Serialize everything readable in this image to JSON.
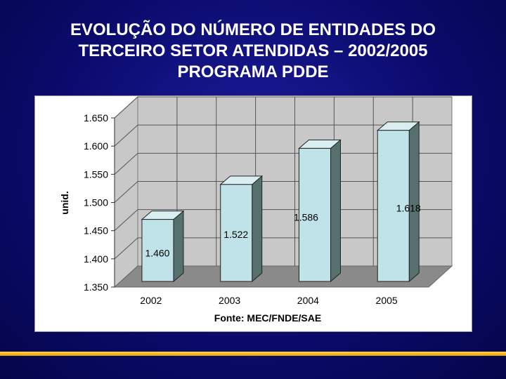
{
  "title": {
    "line1": "EVOLUÇÃO DO NÚMERO DE ENTIDADES DO",
    "line2": "TERCEIRO SETOR ATENDIDAS – 2002/2005",
    "line3": "PROGRAMA PDDE"
  },
  "colors": {
    "background": "#0b0b6e",
    "bar_front": "#bfe3e8",
    "bar_side": "#55706f",
    "bar_top": "#d9eef0",
    "wall": "#c8c8c8",
    "floor": "#8a8a8a",
    "accent_line": "#f2b400"
  },
  "chart_data": {
    "type": "bar",
    "style": "3d-column",
    "categories": [
      "2002",
      "2003",
      "2004",
      "2005"
    ],
    "values": [
      1460,
      1522,
      1586,
      1618
    ],
    "data_labels": [
      "1.460",
      "1.522",
      "1.586",
      "1.618"
    ],
    "ylabel": "unid.",
    "ylim": [
      1350,
      1650
    ],
    "yticks": [
      1350,
      1400,
      1450,
      1500,
      1550,
      1600,
      1650
    ],
    "ytick_labels": [
      "1.350",
      "1.400",
      "1.450",
      "1.500",
      "1.550",
      "1.600",
      "1.650"
    ],
    "grid": true,
    "source": "Fonte: MEC/FNDE/SAE"
  }
}
